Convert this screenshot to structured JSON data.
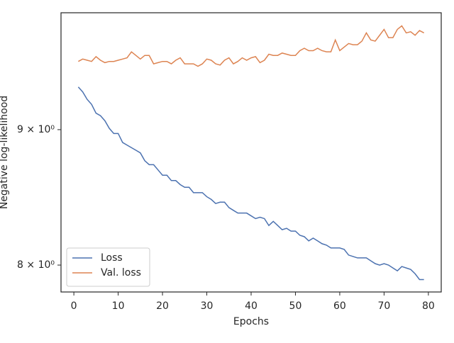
{
  "chart_data": {
    "type": "line",
    "x_label": "Epochs",
    "y_label": "Negative log-likelihood",
    "x": [
      1,
      2,
      3,
      4,
      5,
      6,
      7,
      8,
      9,
      10,
      11,
      12,
      13,
      14,
      15,
      16,
      17,
      18,
      19,
      20,
      21,
      22,
      23,
      24,
      25,
      26,
      27,
      28,
      29,
      30,
      31,
      32,
      33,
      34,
      35,
      36,
      37,
      38,
      39,
      40,
      41,
      42,
      43,
      44,
      45,
      46,
      47,
      48,
      49,
      50,
      51,
      52,
      53,
      54,
      55,
      56,
      57,
      58,
      59,
      60,
      61,
      62,
      63,
      64,
      65,
      66,
      67,
      68,
      69,
      70,
      71,
      72,
      73,
      74,
      75,
      76,
      77,
      78,
      79
    ],
    "series": [
      {
        "name": "Loss",
        "color": "#4c72b0",
        "values": [
          9.34,
          9.3,
          9.24,
          9.2,
          9.13,
          9.11,
          9.07,
          9.01,
          8.97,
          8.97,
          8.9,
          8.88,
          8.86,
          8.84,
          8.82,
          8.76,
          8.73,
          8.73,
          8.69,
          8.65,
          8.65,
          8.61,
          8.61,
          8.58,
          8.56,
          8.56,
          8.52,
          8.52,
          8.52,
          8.49,
          8.47,
          8.44,
          8.45,
          8.45,
          8.41,
          8.39,
          8.37,
          8.37,
          8.37,
          8.35,
          8.33,
          8.34,
          8.33,
          8.28,
          8.31,
          8.28,
          8.25,
          8.26,
          8.24,
          8.24,
          8.21,
          8.2,
          8.17,
          8.19,
          8.17,
          8.15,
          8.14,
          8.12,
          8.12,
          8.12,
          8.11,
          8.07,
          8.06,
          8.05,
          8.05,
          8.05,
          8.03,
          8.01,
          8.0,
          8.01,
          8.0,
          7.98,
          7.96,
          7.99,
          7.98,
          7.97,
          7.94,
          7.9,
          7.9
        ]
      },
      {
        "name": "Val. loss",
        "color": "#dd8452",
        "values": [
          9.55,
          9.57,
          9.56,
          9.55,
          9.59,
          9.56,
          9.54,
          9.55,
          9.55,
          9.56,
          9.57,
          9.58,
          9.63,
          9.6,
          9.57,
          9.6,
          9.6,
          9.53,
          9.54,
          9.55,
          9.55,
          9.53,
          9.56,
          9.58,
          9.53,
          9.53,
          9.53,
          9.51,
          9.53,
          9.57,
          9.56,
          9.53,
          9.52,
          9.56,
          9.58,
          9.53,
          9.55,
          9.58,
          9.56,
          9.58,
          9.59,
          9.54,
          9.56,
          9.61,
          9.6,
          9.6,
          9.62,
          9.61,
          9.6,
          9.6,
          9.64,
          9.66,
          9.64,
          9.64,
          9.66,
          9.64,
          9.63,
          9.63,
          9.73,
          9.64,
          9.67,
          9.7,
          9.69,
          9.69,
          9.72,
          9.79,
          9.73,
          9.72,
          9.77,
          9.82,
          9.75,
          9.75,
          9.82,
          9.85,
          9.79,
          9.8,
          9.77,
          9.81,
          9.79
        ]
      }
    ],
    "xlim": [
      -2.9,
      82.9
    ],
    "xticks": [
      0,
      10,
      20,
      30,
      40,
      50,
      60,
      70,
      80
    ],
    "ylim": [
      7.815,
      9.963
    ],
    "y_scale": "log",
    "yticks": [
      {
        "value": 8,
        "label": "8 × 10⁰"
      },
      {
        "value": 9,
        "label": "9 × 10⁰"
      }
    ],
    "legend": "lower left"
  }
}
